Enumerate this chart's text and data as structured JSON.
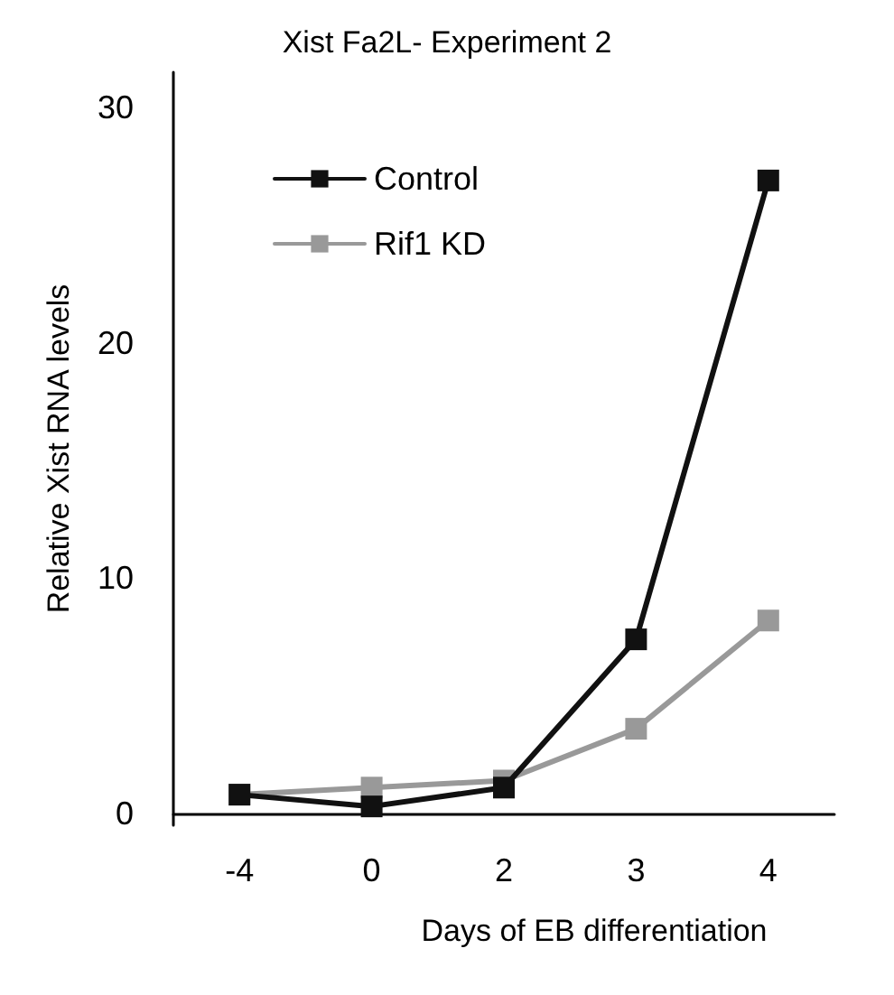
{
  "chart_data": {
    "type": "line",
    "title": "Xist Fa2L- Experiment 2",
    "xlabel": "Days of EB differentiation",
    "ylabel": "Relative Xist RNA levels",
    "categories": [
      "-4",
      "0",
      "2",
      "3",
      "4"
    ],
    "series": [
      {
        "name": "Control",
        "color": "#111111",
        "values": [
          0.8,
          0.3,
          1.1,
          7.4,
          26.9
        ]
      },
      {
        "name": "Rif1 KD",
        "color": "#999999",
        "values": [
          0.8,
          1.1,
          1.4,
          3.6,
          8.2
        ]
      }
    ],
    "ylim": [
      -0.5,
      31.5
    ],
    "yticks": [
      0,
      10,
      20,
      30
    ],
    "grid": false,
    "legend": "top left",
    "marker": "square",
    "line_style": "solid"
  }
}
